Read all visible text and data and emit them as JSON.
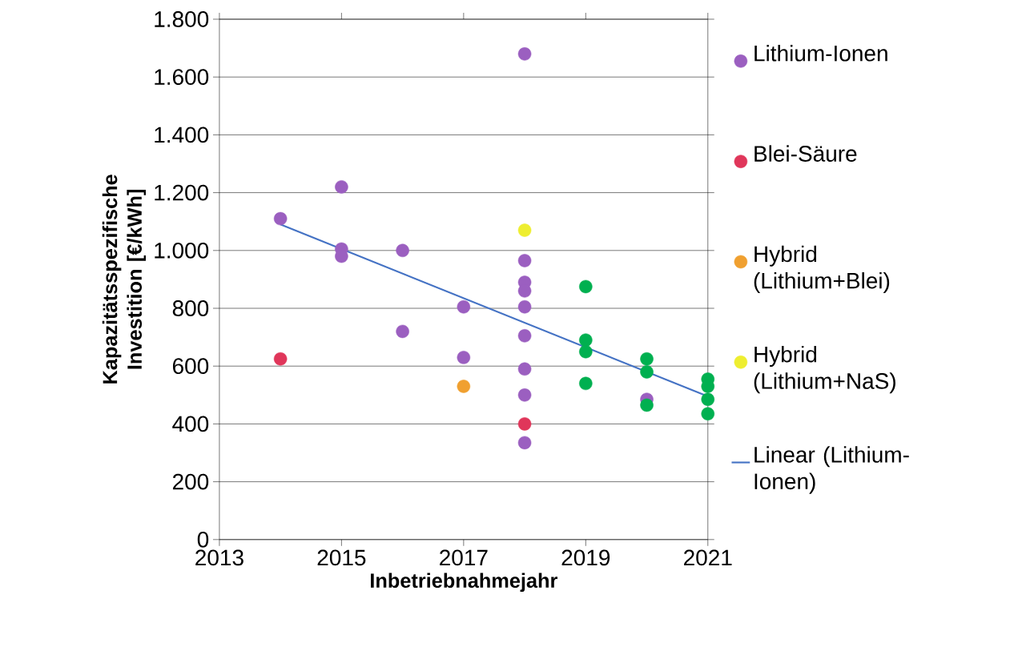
{
  "chart_data": {
    "type": "scatter",
    "xlabel": "Inbetriebnahmejahr",
    "ylabel": "Kapazitätsspezifische Investition [€/kWh]",
    "xlim": [
      2013,
      2021
    ],
    "ylim": [
      0,
      1800
    ],
    "xticks": [
      2013,
      2015,
      2017,
      2019,
      2021
    ],
    "yticks": [
      0,
      200,
      400,
      600,
      800,
      {
        "value": 1000,
        "label": "1.000"
      },
      {
        "value": 1200,
        "label": "1.200"
      },
      {
        "value": 1400,
        "label": "1.400"
      },
      {
        "value": 1600,
        "label": "1.600"
      },
      {
        "value": 1800,
        "label": "1.800"
      }
    ],
    "grid": "y",
    "legend": "right",
    "series": [
      {
        "name": "Lithium-Ionen",
        "color": "#9b5fc0",
        "marker": "circle",
        "x": [
          2014,
          2015,
          2015,
          2015,
          2016,
          2016,
          2017,
          2017,
          2018,
          2018,
          2018,
          2018,
          2018,
          2018,
          2018,
          2018,
          2018,
          2020
        ],
        "values": [
          1110,
          1220,
          1005,
          980,
          1000,
          720,
          805,
          630,
          1680,
          965,
          890,
          860,
          805,
          705,
          590,
          500,
          335,
          485
        ]
      },
      {
        "name": "Blei-Säure",
        "color": "#e0365a",
        "marker": "circle",
        "x": [
          2014,
          2018
        ],
        "values": [
          625,
          400
        ]
      },
      {
        "name": "Hybrid (Lithium+Blei)",
        "color": "#f0a030",
        "marker": "circle",
        "x": [
          2017
        ],
        "values": [
          530
        ]
      },
      {
        "name": "Hybrid (Lithium+NaS)",
        "color": "#eeee30",
        "marker": "circle",
        "x": [
          2018
        ],
        "values": [
          1070
        ]
      },
      {
        "color": "#00b050",
        "marker": "circle",
        "x": [
          2019,
          2019,
          2019,
          2019,
          2020,
          2020,
          2020,
          2021,
          2021,
          2021,
          2021
        ],
        "values": [
          875,
          690,
          650,
          540,
          625,
          580,
          465,
          555,
          530,
          485,
          435
        ]
      },
      {
        "name": "Linear (Lithium-Ionen)",
        "type": "line",
        "marker": "none",
        "color": "#4472c4",
        "x": [
          2014,
          2021
        ],
        "values": [
          1090,
          495
        ]
      }
    ]
  }
}
